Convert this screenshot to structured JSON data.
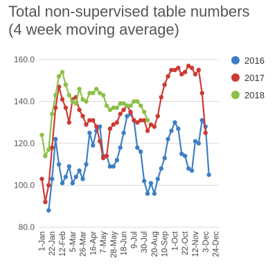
{
  "chart_data": {
    "type": "line",
    "title": "Total non-supervised table numbers",
    "subtitle": "(4 week moving average)",
    "xlabel": "",
    "ylabel": "",
    "ylim": [
      80,
      160
    ],
    "yticks": [
      "160.0",
      "140.0",
      "120.0",
      "100.0",
      "80.0"
    ],
    "ytick_values": [
      160,
      140,
      120,
      100,
      80
    ],
    "grid": true,
    "legend": "right",
    "x_tick_labels": [
      "1-Jan",
      "22-Jan",
      "12-Feb",
      "5-Mar",
      "26-Mar",
      "16-Apr",
      "7-May",
      "28-May",
      "18-Jun",
      "9-Jul",
      "30-Jul",
      "20-Aug",
      "10-Sep",
      "1-Oct",
      "22-Oct",
      "12-Nov",
      "3-Dec",
      "24-Dec"
    ],
    "week_count": 52,
    "series": [
      {
        "name": "2016",
        "color": "#3d7fc4",
        "start_week": 2,
        "values": [
          88,
          103,
          122,
          110,
          101,
          104,
          109,
          101,
          104,
          107,
          103,
          110,
          125,
          119,
          126,
          128,
          114,
          114,
          109,
          109,
          112,
          118,
          125,
          133,
          134,
          131,
          118,
          116,
          102,
          96,
          101,
          96,
          103,
          108,
          113,
          122,
          126,
          130,
          127,
          115,
          114,
          108,
          107,
          121,
          120,
          131,
          128,
          105
        ]
      },
      {
        "name": "2017",
        "color": "#cc3b33",
        "start_week": 0,
        "values": [
          103,
          92,
          100,
          118,
          137,
          147,
          141,
          137,
          130,
          141,
          142,
          136,
          133,
          129,
          131,
          131,
          128,
          121,
          113,
          114,
          127,
          129,
          130,
          134,
          136,
          138,
          135,
          131,
          130,
          131,
          131,
          126,
          129,
          128,
          133,
          142,
          148,
          152,
          155,
          155,
          156,
          153,
          154,
          157,
          156,
          153,
          155,
          144,
          125
        ]
      },
      {
        "name": "2018",
        "color": "#8dc048",
        "start_week": 0,
        "values": [
          124,
          114,
          117,
          134,
          143,
          152,
          154,
          148,
          143,
          140,
          139,
          146,
          141,
          140,
          144,
          144,
          146,
          144,
          143,
          138,
          136,
          137,
          137,
          139,
          139,
          138,
          138,
          140,
          140,
          138,
          135,
          131
        ]
      }
    ]
  }
}
